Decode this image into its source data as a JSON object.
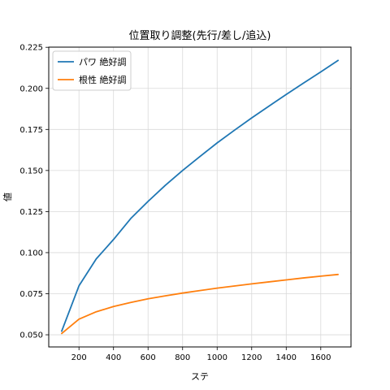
{
  "chart_data": {
    "type": "line",
    "title": "位置取り調整(先行/差し/追込)",
    "xlabel": "ステ",
    "ylabel": "値",
    "xlim": [
      25,
      1775
    ],
    "ylim": [
      0.0426,
      0.2251
    ],
    "xticks": [
      200,
      400,
      600,
      800,
      1000,
      1200,
      1400,
      1600
    ],
    "xtick_labels": [
      "200",
      "400",
      "600",
      "800",
      "1000",
      "1200",
      "1400",
      "1600"
    ],
    "yticks": [
      0.05,
      0.075,
      0.1,
      0.125,
      0.15,
      0.175,
      0.2,
      0.225
    ],
    "ytick_labels": [
      "0.050",
      "0.075",
      "0.100",
      "0.125",
      "0.150",
      "0.175",
      "0.200",
      "0.225"
    ],
    "grid": true,
    "legend_position": "top-left",
    "x": [
      100,
      200,
      300,
      400,
      500,
      600,
      700,
      800,
      900,
      1000,
      1100,
      1200,
      1300,
      1400,
      1500,
      1600,
      1700
    ],
    "series": [
      {
        "name": "パワ 絶好調",
        "color": "#1f77b4",
        "values": [
          0.0522,
          0.0798,
          0.0962,
          0.108,
          0.1208,
          0.1312,
          0.141,
          0.15,
          0.1585,
          0.1668,
          0.1745,
          0.182,
          0.1892,
          0.1963,
          0.2032,
          0.21,
          0.217
        ]
      },
      {
        "name": "根性 絶好調",
        "color": "#ff7f0e",
        "values": [
          0.0508,
          0.0595,
          0.064,
          0.0672,
          0.0697,
          0.0719,
          0.0737,
          0.0754,
          0.0769,
          0.0784,
          0.0797,
          0.081,
          0.0822,
          0.0834,
          0.0846,
          0.0857,
          0.0867
        ]
      }
    ]
  }
}
